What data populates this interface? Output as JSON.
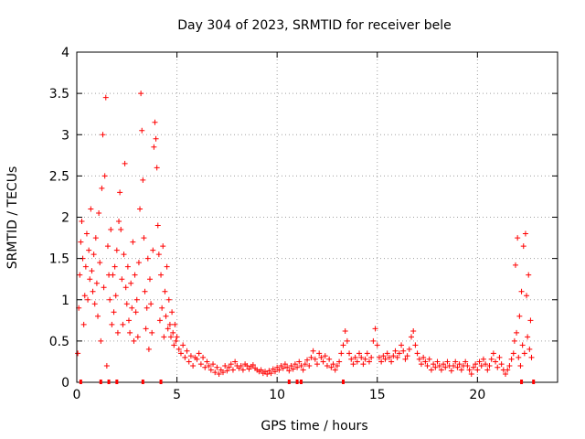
{
  "chart_data": {
    "type": "scatter",
    "title": "Day 304 of 2023, SRMTID for receiver bele",
    "xlabel": "GPS time / hours",
    "ylabel": "SRMTID / TECUs",
    "xlim": [
      0,
      24
    ],
    "ylim": [
      0,
      4
    ],
    "xticks": [
      0,
      5,
      10,
      15,
      20
    ],
    "xtick_labels": [
      "0",
      "5",
      "10",
      "15",
      "20"
    ],
    "yticks": [
      0,
      0.5,
      1,
      1.5,
      2,
      2.5,
      3,
      3.5,
      4
    ],
    "ytick_labels": [
      "0",
      "0.5",
      "1",
      "1.5",
      "2",
      "2.5",
      "3",
      "3.5",
      "4"
    ],
    "grid": true,
    "marker": "plus",
    "series": [
      {
        "name": "SRMTID",
        "color": "#ff0000",
        "points": [
          [
            0.05,
            0.35
          ],
          [
            0.1,
            0.9
          ],
          [
            0.15,
            1.3
          ],
          [
            0.2,
            1.7
          ],
          [
            0.25,
            1.95
          ],
          [
            0.3,
            1.5
          ],
          [
            0.35,
            0.7
          ],
          [
            0.4,
            1.05
          ],
          [
            0.45,
            1.4
          ],
          [
            0.5,
            1.8
          ],
          [
            0.55,
            1.0
          ],
          [
            0.6,
            1.6
          ],
          [
            0.65,
            1.25
          ],
          [
            0.7,
            2.1
          ],
          [
            0.75,
            1.35
          ],
          [
            0.8,
            1.1
          ],
          [
            0.85,
            1.55
          ],
          [
            0.9,
            0.95
          ],
          [
            0.95,
            1.75
          ],
          [
            1.0,
            1.2
          ],
          [
            1.05,
            0.8
          ],
          [
            1.1,
            2.05
          ],
          [
            1.15,
            1.45
          ],
          [
            1.2,
            0.5
          ],
          [
            1.25,
            2.35
          ],
          [
            1.3,
            3.0
          ],
          [
            1.35,
            1.15
          ],
          [
            1.4,
            2.5
          ],
          [
            1.45,
            3.45
          ],
          [
            1.5,
            0.2
          ],
          [
            1.55,
            1.65
          ],
          [
            1.6,
            1.3
          ],
          [
            1.65,
            1.0
          ],
          [
            1.7,
            1.85
          ],
          [
            1.75,
            0.7
          ],
          [
            1.8,
            1.3
          ],
          [
            1.85,
            0.85
          ],
          [
            1.9,
            1.4
          ],
          [
            1.95,
            1.05
          ],
          [
            2.0,
            1.6
          ],
          [
            2.05,
            0.6
          ],
          [
            2.1,
            1.95
          ],
          [
            2.15,
            2.3
          ],
          [
            2.2,
            1.85
          ],
          [
            2.25,
            1.25
          ],
          [
            2.3,
            0.7
          ],
          [
            2.35,
            1.55
          ],
          [
            2.4,
            2.65
          ],
          [
            2.45,
            1.15
          ],
          [
            2.5,
            0.95
          ],
          [
            2.55,
            1.4
          ],
          [
            2.6,
            0.75
          ],
          [
            2.65,
            0.6
          ],
          [
            2.7,
            1.2
          ],
          [
            2.75,
            0.9
          ],
          [
            2.8,
            1.7
          ],
          [
            2.85,
            0.5
          ],
          [
            2.9,
            1.3
          ],
          [
            2.95,
            0.85
          ],
          [
            3.0,
            1.0
          ],
          [
            3.05,
            0.55
          ],
          [
            3.1,
            1.45
          ],
          [
            3.15,
            2.1
          ],
          [
            3.2,
            3.5
          ],
          [
            3.25,
            3.05
          ],
          [
            3.3,
            2.45
          ],
          [
            3.35,
            1.75
          ],
          [
            3.4,
            1.1
          ],
          [
            3.45,
            0.65
          ],
          [
            3.5,
            0.9
          ],
          [
            3.55,
            1.5
          ],
          [
            3.6,
            0.4
          ],
          [
            3.65,
            1.25
          ],
          [
            3.7,
            0.95
          ],
          [
            3.75,
            0.6
          ],
          [
            3.8,
            1.6
          ],
          [
            3.85,
            2.85
          ],
          [
            3.9,
            3.15
          ],
          [
            3.95,
            2.95
          ],
          [
            4.0,
            2.6
          ],
          [
            4.05,
            1.9
          ],
          [
            4.1,
            1.55
          ],
          [
            4.15,
            0.75
          ],
          [
            4.2,
            1.3
          ],
          [
            4.25,
            0.9
          ],
          [
            4.3,
            1.65
          ],
          [
            4.35,
            0.55
          ],
          [
            4.4,
            1.1
          ],
          [
            4.45,
            0.8
          ],
          [
            4.5,
            1.4
          ],
          [
            4.55,
            0.65
          ],
          [
            4.6,
            1.0
          ],
          [
            4.65,
            0.7
          ],
          [
            4.7,
            0.55
          ],
          [
            4.75,
            0.85
          ],
          [
            4.8,
            0.6
          ],
          [
            4.85,
            0.45
          ],
          [
            4.9,
            0.7
          ],
          [
            4.95,
            0.5
          ],
          [
            5.0,
            0.55
          ],
          [
            5.1,
            0.4
          ],
          [
            5.2,
            0.35
          ],
          [
            5.3,
            0.45
          ],
          [
            5.4,
            0.3
          ],
          [
            5.5,
            0.38
          ],
          [
            5.6,
            0.25
          ],
          [
            5.7,
            0.32
          ],
          [
            5.8,
            0.2
          ],
          [
            5.9,
            0.3
          ],
          [
            6.0,
            0.28
          ],
          [
            6.1,
            0.35
          ],
          [
            6.2,
            0.22
          ],
          [
            6.3,
            0.3
          ],
          [
            6.4,
            0.18
          ],
          [
            6.5,
            0.25
          ],
          [
            6.6,
            0.2
          ],
          [
            6.7,
            0.15
          ],
          [
            6.8,
            0.22
          ],
          [
            6.9,
            0.12
          ],
          [
            7.0,
            0.18
          ],
          [
            7.1,
            0.1
          ],
          [
            7.2,
            0.15
          ],
          [
            7.3,
            0.12
          ],
          [
            7.4,
            0.2
          ],
          [
            7.5,
            0.14
          ],
          [
            7.6,
            0.18
          ],
          [
            7.7,
            0.22
          ],
          [
            7.8,
            0.15
          ],
          [
            7.9,
            0.25
          ],
          [
            8.0,
            0.2
          ],
          [
            8.1,
            0.17
          ],
          [
            8.2,
            0.2
          ],
          [
            8.3,
            0.15
          ],
          [
            8.4,
            0.22
          ],
          [
            8.5,
            0.2
          ],
          [
            8.6,
            0.16
          ],
          [
            8.7,
            0.19
          ],
          [
            8.8,
            0.21
          ],
          [
            8.9,
            0.17
          ],
          [
            9.0,
            0.15
          ],
          [
            9.1,
            0.13
          ],
          [
            9.2,
            0.15
          ],
          [
            9.3,
            0.11
          ],
          [
            9.4,
            0.13
          ],
          [
            9.5,
            0.1
          ],
          [
            9.6,
            0.14
          ],
          [
            9.7,
            0.11
          ],
          [
            9.8,
            0.16
          ],
          [
            9.9,
            0.13
          ],
          [
            10.0,
            0.18
          ],
          [
            10.1,
            0.15
          ],
          [
            10.2,
            0.2
          ],
          [
            10.3,
            0.17
          ],
          [
            10.4,
            0.22
          ],
          [
            10.5,
            0.18
          ],
          [
            10.6,
            0.14
          ],
          [
            10.7,
            0.2
          ],
          [
            10.8,
            0.16
          ],
          [
            10.9,
            0.22
          ],
          [
            11.0,
            0.18
          ],
          [
            11.1,
            0.25
          ],
          [
            11.2,
            0.2
          ],
          [
            11.3,
            0.15
          ],
          [
            11.4,
            0.22
          ],
          [
            11.5,
            0.27
          ],
          [
            11.6,
            0.2
          ],
          [
            11.7,
            0.3
          ],
          [
            11.8,
            0.38
          ],
          [
            11.9,
            0.28
          ],
          [
            12.0,
            0.22
          ],
          [
            12.1,
            0.35
          ],
          [
            12.2,
            0.3
          ],
          [
            12.3,
            0.25
          ],
          [
            12.4,
            0.32
          ],
          [
            12.5,
            0.2
          ],
          [
            12.6,
            0.28
          ],
          [
            12.7,
            0.18
          ],
          [
            12.8,
            0.22
          ],
          [
            12.9,
            0.15
          ],
          [
            13.0,
            0.2
          ],
          [
            13.1,
            0.25
          ],
          [
            13.2,
            0.35
          ],
          [
            13.3,
            0.45
          ],
          [
            13.4,
            0.62
          ],
          [
            13.5,
            0.5
          ],
          [
            13.6,
            0.35
          ],
          [
            13.7,
            0.28
          ],
          [
            13.8,
            0.22
          ],
          [
            13.9,
            0.3
          ],
          [
            14.0,
            0.25
          ],
          [
            14.1,
            0.35
          ],
          [
            14.2,
            0.3
          ],
          [
            14.3,
            0.22
          ],
          [
            14.4,
            0.28
          ],
          [
            14.5,
            0.35
          ],
          [
            14.6,
            0.25
          ],
          [
            14.7,
            0.3
          ],
          [
            14.8,
            0.5
          ],
          [
            14.9,
            0.65
          ],
          [
            15.0,
            0.45
          ],
          [
            15.1,
            0.3
          ],
          [
            15.2,
            0.25
          ],
          [
            15.3,
            0.32
          ],
          [
            15.4,
            0.28
          ],
          [
            15.5,
            0.35
          ],
          [
            15.6,
            0.3
          ],
          [
            15.7,
            0.25
          ],
          [
            15.8,
            0.32
          ],
          [
            15.9,
            0.38
          ],
          [
            16.0,
            0.3
          ],
          [
            16.1,
            0.35
          ],
          [
            16.2,
            0.45
          ],
          [
            16.3,
            0.38
          ],
          [
            16.4,
            0.28
          ],
          [
            16.5,
            0.32
          ],
          [
            16.6,
            0.4
          ],
          [
            16.7,
            0.55
          ],
          [
            16.8,
            0.62
          ],
          [
            16.9,
            0.45
          ],
          [
            17.0,
            0.35
          ],
          [
            17.1,
            0.28
          ],
          [
            17.2,
            0.22
          ],
          [
            17.3,
            0.3
          ],
          [
            17.4,
            0.25
          ],
          [
            17.5,
            0.2
          ],
          [
            17.6,
            0.28
          ],
          [
            17.7,
            0.15
          ],
          [
            17.8,
            0.22
          ],
          [
            17.9,
            0.18
          ],
          [
            18.0,
            0.25
          ],
          [
            18.1,
            0.2
          ],
          [
            18.2,
            0.15
          ],
          [
            18.3,
            0.22
          ],
          [
            18.4,
            0.18
          ],
          [
            18.5,
            0.25
          ],
          [
            18.6,
            0.2
          ],
          [
            18.7,
            0.14
          ],
          [
            18.8,
            0.2
          ],
          [
            18.9,
            0.25
          ],
          [
            19.0,
            0.18
          ],
          [
            19.1,
            0.22
          ],
          [
            19.2,
            0.15
          ],
          [
            19.3,
            0.2
          ],
          [
            19.4,
            0.25
          ],
          [
            19.5,
            0.2
          ],
          [
            19.6,
            0.15
          ],
          [
            19.7,
            0.1
          ],
          [
            19.8,
            0.18
          ],
          [
            19.9,
            0.22
          ],
          [
            20.0,
            0.15
          ],
          [
            20.1,
            0.25
          ],
          [
            20.2,
            0.2
          ],
          [
            20.3,
            0.28
          ],
          [
            20.4,
            0.22
          ],
          [
            20.5,
            0.15
          ],
          [
            20.6,
            0.2
          ],
          [
            20.7,
            0.28
          ],
          [
            20.8,
            0.35
          ],
          [
            20.9,
            0.25
          ],
          [
            21.0,
            0.18
          ],
          [
            21.1,
            0.3
          ],
          [
            21.2,
            0.22
          ],
          [
            21.3,
            0.15
          ],
          [
            21.4,
            0.1
          ],
          [
            21.5,
            0.15
          ],
          [
            21.6,
            0.2
          ],
          [
            21.7,
            0.28
          ],
          [
            21.8,
            0.35
          ],
          [
            21.85,
            0.5
          ],
          [
            21.9,
            1.42
          ],
          [
            21.95,
            0.6
          ],
          [
            22.0,
            1.75
          ],
          [
            22.05,
            0.3
          ],
          [
            22.1,
            0.8
          ],
          [
            22.15,
            0.2
          ],
          [
            22.2,
            1.1
          ],
          [
            22.25,
            0.45
          ],
          [
            22.3,
            1.65
          ],
          [
            22.35,
            0.35
          ],
          [
            22.4,
            1.8
          ],
          [
            22.45,
            1.05
          ],
          [
            22.5,
            0.55
          ],
          [
            22.55,
            1.3
          ],
          [
            22.6,
            0.4
          ],
          [
            22.65,
            0.75
          ],
          [
            22.7,
            0.3
          ]
        ]
      }
    ]
  }
}
